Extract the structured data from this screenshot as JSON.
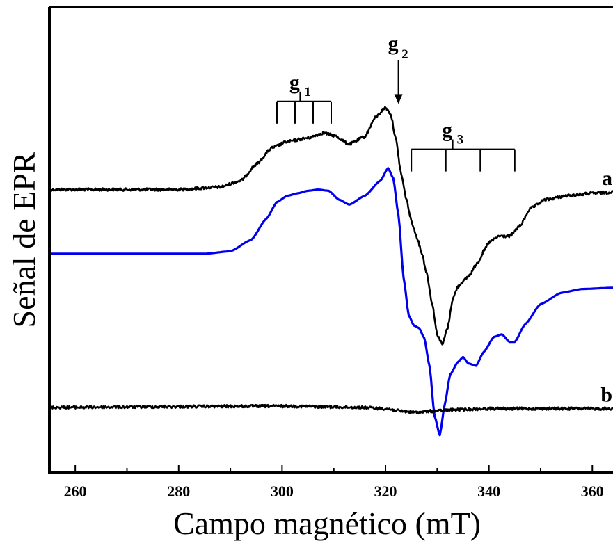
{
  "chart_data": {
    "type": "line",
    "xlabel": "Campo magnético (mT)",
    "ylabel": "Señal de EPR",
    "xlim": [
      255,
      364
    ],
    "ylim": [
      -1.2,
      2.5
    ],
    "x_ticks": [
      260,
      280,
      300,
      320,
      340,
      360
    ],
    "x_tick_labels": [
      "260",
      "280",
      "300",
      "320",
      "340",
      "360"
    ],
    "grid": false,
    "legend": "none",
    "series": [
      {
        "label": "a",
        "color": "#000000",
        "noise": true,
        "points": [
          [
            255,
            1.05
          ],
          [
            280,
            1.05
          ],
          [
            288,
            1.07
          ],
          [
            292,
            1.12
          ],
          [
            295,
            1.25
          ],
          [
            298,
            1.38
          ],
          [
            301,
            1.43
          ],
          [
            305,
            1.46
          ],
          [
            308,
            1.5
          ],
          [
            310,
            1.48
          ],
          [
            313,
            1.41
          ],
          [
            316,
            1.47
          ],
          [
            318,
            1.62
          ],
          [
            320,
            1.7
          ],
          [
            321,
            1.65
          ],
          [
            322,
            1.45
          ],
          [
            323,
            1.18
          ],
          [
            324,
            0.98
          ],
          [
            325,
            0.8
          ],
          [
            326,
            0.68
          ],
          [
            327,
            0.55
          ],
          [
            328,
            0.38
          ],
          [
            329,
            0.15
          ],
          [
            330,
            -0.1
          ],
          [
            331,
            -0.18
          ],
          [
            332,
            -0.05
          ],
          [
            333,
            0.18
          ],
          [
            334,
            0.28
          ],
          [
            335,
            0.32
          ],
          [
            336,
            0.36
          ],
          [
            338,
            0.48
          ],
          [
            339,
            0.56
          ],
          [
            340,
            0.63
          ],
          [
            342,
            0.68
          ],
          [
            344,
            0.68
          ],
          [
            346,
            0.76
          ],
          [
            348,
            0.9
          ],
          [
            351,
            0.97
          ],
          [
            355,
            1.0
          ],
          [
            360,
            1.02
          ],
          [
            364,
            1.03
          ]
        ]
      },
      {
        "label": "",
        "color": "#0000ee",
        "noise": false,
        "points": [
          [
            255,
            0.54
          ],
          [
            285,
            0.54
          ],
          [
            290,
            0.56
          ],
          [
            294,
            0.65
          ],
          [
            297,
            0.82
          ],
          [
            299,
            0.95
          ],
          [
            301,
            1.0
          ],
          [
            303,
            1.02
          ],
          [
            305,
            1.04
          ],
          [
            307,
            1.05
          ],
          [
            309,
            1.04
          ],
          [
            311,
            0.97
          ],
          [
            313,
            0.93
          ],
          [
            316,
            1.0
          ],
          [
            319,
            1.12
          ],
          [
            320.5,
            1.22
          ],
          [
            321.5,
            1.14
          ],
          [
            322.5,
            0.85
          ],
          [
            323.5,
            0.35
          ],
          [
            324.5,
            0.05
          ],
          [
            325.5,
            -0.03
          ],
          [
            326.5,
            -0.05
          ],
          [
            327.5,
            -0.13
          ],
          [
            328.5,
            -0.35
          ],
          [
            329.5,
            -0.75
          ],
          [
            330.5,
            -0.9
          ],
          [
            331.5,
            -0.65
          ],
          [
            332.5,
            -0.42
          ],
          [
            334,
            -0.32
          ],
          [
            335,
            -0.28
          ],
          [
            336,
            -0.33
          ],
          [
            337.5,
            -0.35
          ],
          [
            339,
            -0.24
          ],
          [
            341,
            -0.12
          ],
          [
            342.5,
            -0.1
          ],
          [
            344,
            -0.16
          ],
          [
            345,
            -0.16
          ],
          [
            347,
            -0.02
          ],
          [
            350,
            0.14
          ],
          [
            354,
            0.23
          ],
          [
            358,
            0.26
          ],
          [
            364,
            0.27
          ]
        ]
      },
      {
        "label": "b",
        "color": "#000000",
        "noise": true,
        "points": [
          [
            255,
            -0.68
          ],
          [
            300,
            -0.67
          ],
          [
            315,
            -0.68
          ],
          [
            320,
            -0.69
          ],
          [
            323,
            -0.71
          ],
          [
            326,
            -0.72
          ],
          [
            329,
            -0.71
          ],
          [
            333,
            -0.7
          ],
          [
            340,
            -0.69
          ],
          [
            364,
            -0.69
          ]
        ]
      }
    ],
    "annotations": [
      {
        "text": "g",
        "sub": "1",
        "type": "comb",
        "x_start": 299,
        "x_end": 309.5,
        "teeth": 4,
        "y": 1.75,
        "label_x": 303.5
      },
      {
        "text": "g",
        "sub": "2",
        "type": "arrow",
        "x": 322.5,
        "y_top": 2.08,
        "y_bottom": 1.73,
        "label_x": 321.5
      },
      {
        "text": "g",
        "sub": "3",
        "type": "comb",
        "x_start": 325,
        "x_end": 345,
        "teeth": 4,
        "y": 1.37,
        "label_x": 333
      }
    ]
  }
}
